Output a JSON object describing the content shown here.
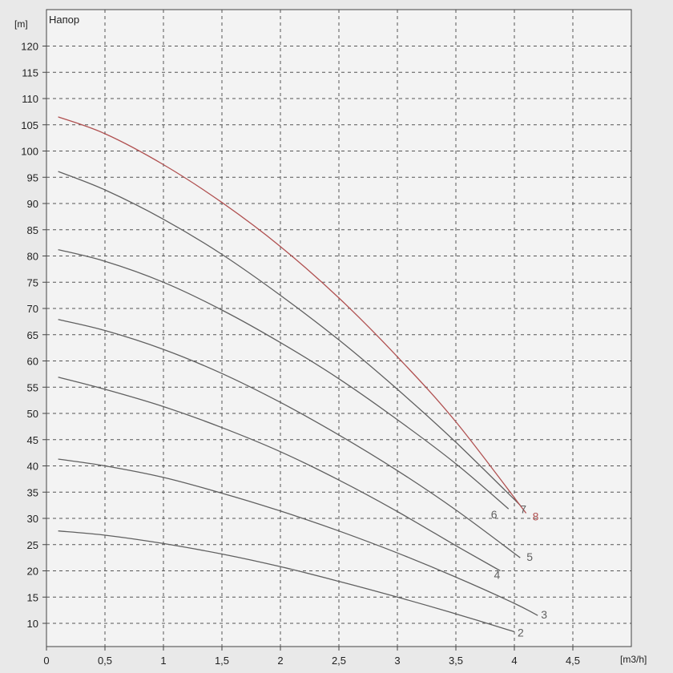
{
  "chart_data": {
    "type": "line",
    "title": "Напор",
    "xlabel": "[m3/h]",
    "ylabel": "[m]",
    "xlim": [
      0,
      5
    ],
    "ylim": [
      5,
      125
    ],
    "x_ticks": [
      0,
      0.5,
      1,
      1.5,
      2,
      2.5,
      3,
      3.5,
      4,
      4.5
    ],
    "x_tick_labels": [
      "0",
      "0,5",
      "1",
      "1,5",
      "2",
      "2,5",
      "3",
      "3,5",
      "4",
      "4,5"
    ],
    "y_ticks": [
      10,
      15,
      20,
      25,
      30,
      35,
      40,
      45,
      50,
      55,
      60,
      65,
      70,
      75,
      80,
      85,
      90,
      95,
      100,
      105,
      110,
      115,
      120
    ],
    "grid": true,
    "colors": {
      "default": "#606060",
      "highlight": "#b05050",
      "grid": "#555555"
    },
    "series": [
      {
        "name": "2",
        "color": "#606060",
        "x": [
          0.1,
          0.5,
          1,
          1.5,
          2,
          2.5,
          3,
          3.5,
          4
        ],
        "y": [
          27.6,
          26.8,
          25.2,
          23.2,
          20.8,
          18.0,
          15.0,
          11.8,
          8.4
        ]
      },
      {
        "name": "3",
        "color": "#606060",
        "x": [
          0.1,
          0.5,
          1,
          1.5,
          2,
          2.5,
          3,
          3.5,
          4,
          4.2
        ],
        "y": [
          41.3,
          40.0,
          37.8,
          34.8,
          31.4,
          27.6,
          23.4,
          18.8,
          13.8,
          11.5
        ]
      },
      {
        "name": "4",
        "color": "#606060",
        "x": [
          0.1,
          0.5,
          1,
          1.5,
          2,
          2.5,
          3,
          3.5,
          3.88
        ],
        "y": [
          56.9,
          54.6,
          51.3,
          47.3,
          42.7,
          37.3,
          31.3,
          24.8,
          20.0
        ]
      },
      {
        "name": "5",
        "color": "#606060",
        "x": [
          0.1,
          0.5,
          1,
          1.5,
          2,
          2.5,
          3,
          3.5,
          4.05
        ],
        "y": [
          67.9,
          65.8,
          62.2,
          57.6,
          52.1,
          45.9,
          39.1,
          31.6,
          22.5
        ]
      },
      {
        "name": "6",
        "color": "#606060",
        "x": [
          0.1,
          0.5,
          1,
          1.5,
          2,
          2.5,
          3,
          3.5,
          3.95
        ],
        "y": [
          81.2,
          79.0,
          75.0,
          69.7,
          63.5,
          56.6,
          48.8,
          40.4,
          31.8
        ]
      },
      {
        "name": "7",
        "color": "#606060",
        "x": [
          0.1,
          0.5,
          1,
          1.5,
          2,
          2.5,
          3,
          3.5,
          4.05
        ],
        "y": [
          96.1,
          92.6,
          87.0,
          80.3,
          72.5,
          64.0,
          54.6,
          44.5,
          32.5
        ]
      },
      {
        "name": "8",
        "color": "#b05050",
        "x": [
          0.1,
          0.5,
          1,
          1.5,
          2,
          2.5,
          3,
          3.5,
          4.1
        ],
        "y": [
          106.5,
          103.3,
          97.4,
          90.2,
          81.8,
          72.0,
          60.8,
          48.4,
          31.0
        ]
      }
    ]
  }
}
